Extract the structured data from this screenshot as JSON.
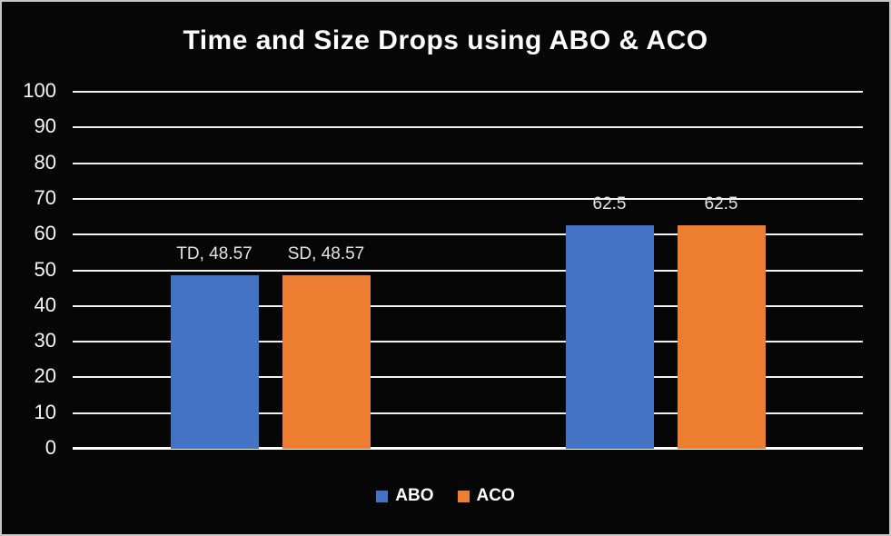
{
  "frame": {
    "background_color": "#060606",
    "border_color": "#c6c6c6",
    "gridline_color": "#f2f2f2",
    "text_color": "#ffffff",
    "data_label_color": "#e3e3e3"
  },
  "chart_data": {
    "type": "bar",
    "title": "Time and Size Drops using ABO & ACO",
    "xlabel": "",
    "ylabel": "",
    "ylim": [
      0,
      100
    ],
    "yticks": [
      0,
      10,
      20,
      30,
      40,
      50,
      60,
      70,
      80,
      90,
      100
    ],
    "grid": true,
    "legend_position": "bottom",
    "categories": [
      "",
      ""
    ],
    "series": [
      {
        "name": "ABO",
        "color": "#4472C4",
        "values": [
          48.57,
          62.5
        ],
        "point_labels": [
          "TD, 48.57",
          "62.5"
        ]
      },
      {
        "name": "ACO",
        "color": "#ED7D31",
        "values": [
          48.57,
          62.5
        ],
        "point_labels": [
          "SD, 48.57",
          "62.5"
        ]
      }
    ]
  }
}
